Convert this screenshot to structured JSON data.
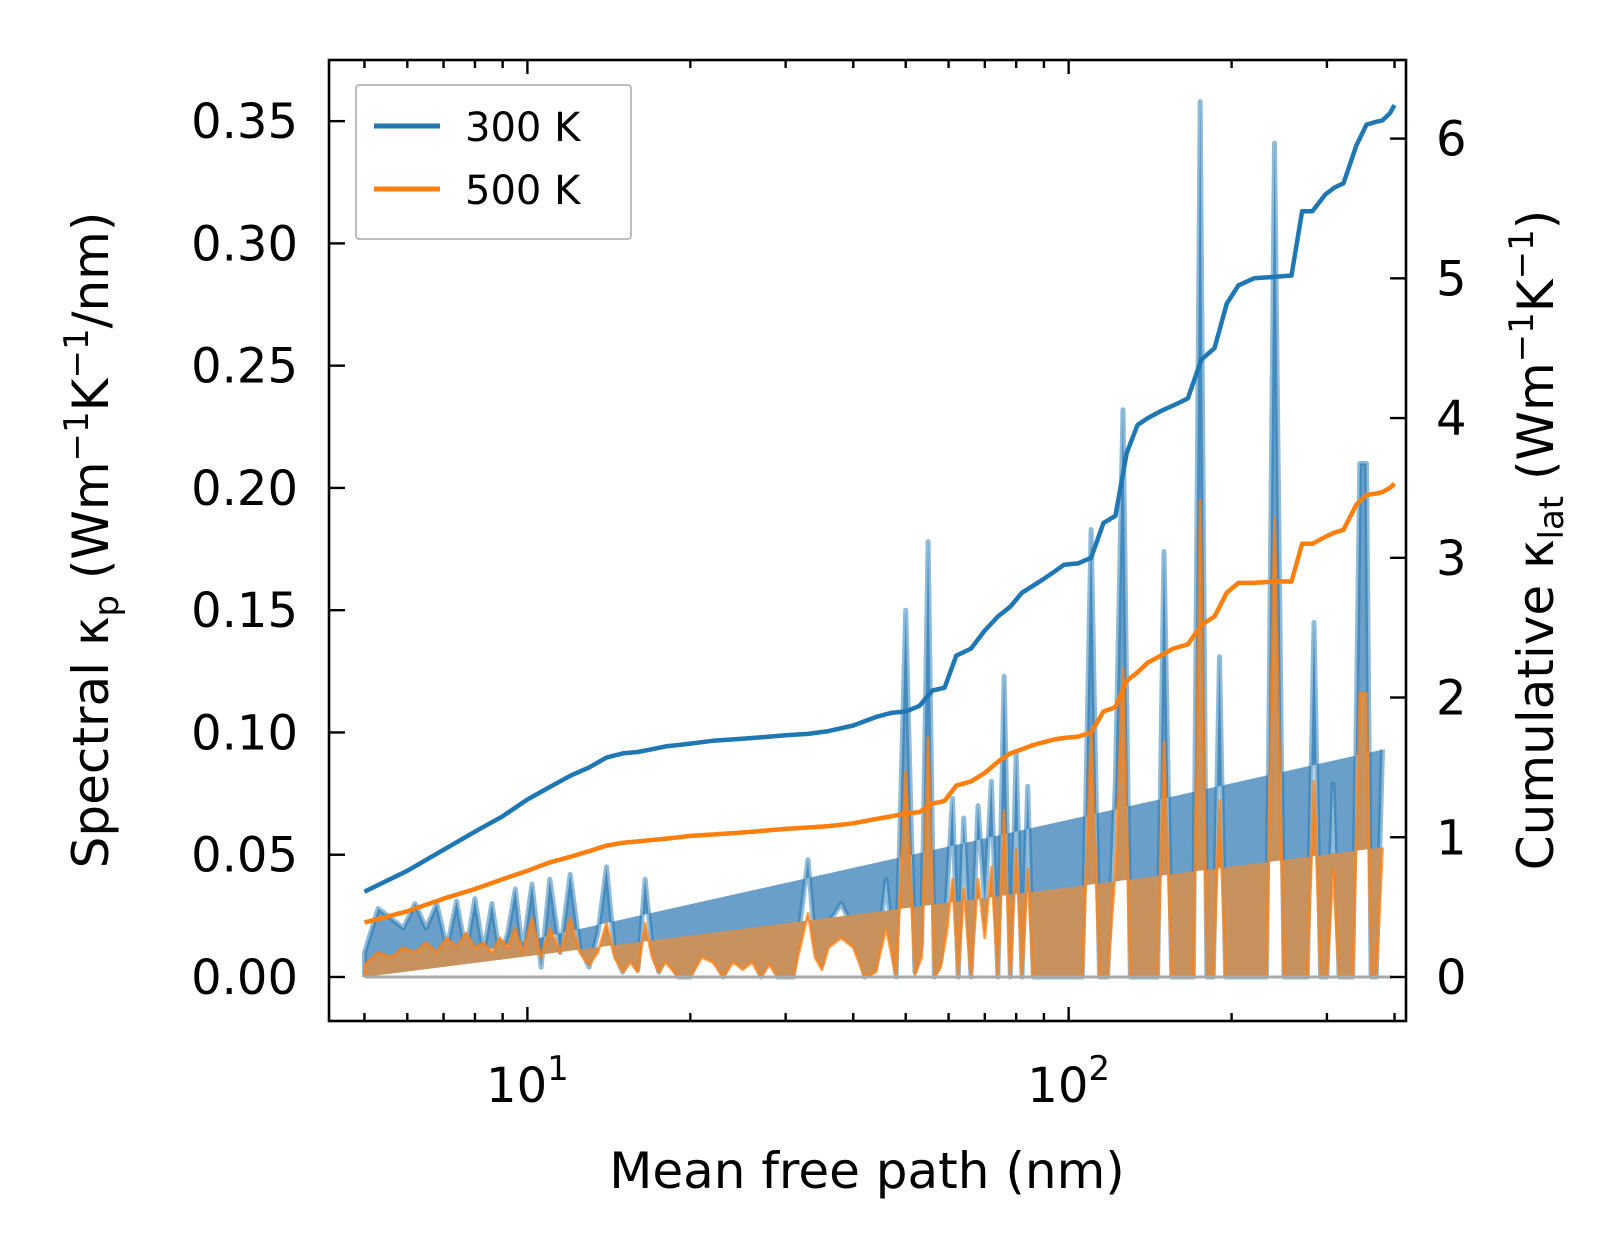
{
  "chart_data": {
    "type": "line",
    "xscale": "log",
    "xlim": [
      4.3,
      420
    ],
    "ylim_left": [
      -0.018,
      0.375
    ],
    "ylim_right": [
      -0.315,
      6.5625
    ],
    "xlabel": "Mean free path (nm)",
    "ylabel_left": {
      "prefix": "Spectral κ",
      "sub": "p",
      "open": " (Wm",
      "sup1": "−1",
      "mid": "K",
      "sup2": "−1",
      "close": "/nm)"
    },
    "ylabel_right": {
      "prefix": "Cumulative κ",
      "sub": "lat",
      "open": " (Wm",
      "sup1": "−1",
      "mid": "K",
      "sup2": "−1",
      "close": ")"
    },
    "x_ticks": [
      {
        "value": 10,
        "base": "10",
        "exp": "1"
      },
      {
        "value": 100,
        "base": "10",
        "exp": "2"
      }
    ],
    "y_ticks_left": [
      "0.00",
      "0.05",
      "0.10",
      "0.15",
      "0.20",
      "0.25",
      "0.30",
      "0.35"
    ],
    "y_ticks_right": [
      "0",
      "1",
      "2",
      "3",
      "4",
      "5",
      "6"
    ],
    "legend": {
      "location": "upper-left",
      "entries": [
        "300 K",
        "500 K"
      ]
    },
    "colors": {
      "s300": "#1f77b4",
      "s500": "#ff7f0e",
      "fill300": "#6a9fc9",
      "fill500": "#c8925e",
      "baseline": "#a9a9a9"
    },
    "spectral": {
      "x": [
        5.0,
        5.3,
        5.6,
        5.9,
        6.2,
        6.5,
        6.8,
        7.1,
        7.4,
        7.7,
        8.0,
        8.3,
        8.6,
        8.9,
        9.2,
        9.5,
        9.8,
        10.2,
        10.6,
        11.0,
        11.5,
        12.0,
        12.5,
        13.0,
        13.5,
        14.0,
        14.5,
        15.0,
        15.5,
        16.0,
        16.5,
        17.0,
        17.5,
        18.0,
        18.5,
        19.0,
        20.0,
        21.0,
        22.0,
        23.0,
        24.0,
        25.0,
        26.0,
        27.0,
        28.0,
        29.0,
        30.0,
        31.0,
        33.0,
        34.0,
        35.0,
        36.0,
        38.0,
        40.0,
        42.0,
        44.0,
        46.0,
        48.0,
        50.0,
        52.0,
        53.5,
        55.0,
        56.5,
        58.0,
        59.5,
        61.0,
        62.5,
        64.0,
        66.0,
        68.0,
        70.0,
        72.0,
        74.0,
        76.0,
        78.0,
        80.0,
        82.0,
        84.0,
        86.0,
        88.0,
        90.0,
        92.0,
        94.0,
        96.0,
        99.0,
        102.0,
        106.0,
        110.0,
        114.0,
        118.0,
        122.0,
        126.0,
        130.0,
        134.0,
        138.0,
        142.0,
        146.0,
        150.0,
        155.0,
        160.0,
        165.0,
        170.0,
        175.0,
        180.0,
        185.0,
        190.0,
        195.0,
        200.0,
        205.0,
        210.0,
        215.0,
        220.0,
        226.0,
        232.0,
        240.0,
        250.0,
        260.0,
        268.0,
        276.0,
        284.0,
        292.0,
        300.0,
        308.0,
        316.0,
        325.0,
        335.0,
        345.0,
        355.0,
        362.0,
        370.0,
        380.0,
        390.0,
        397.0
      ],
      "y300": [
        0.01,
        0.028,
        0.024,
        0.02,
        0.03,
        0.02,
        0.03,
        0.012,
        0.031,
        0.01,
        0.032,
        0.01,
        0.03,
        0.008,
        0.018,
        0.036,
        0.01,
        0.038,
        0.004,
        0.04,
        0.01,
        0.042,
        0.012,
        0.004,
        0.018,
        0.045,
        0.01,
        0.002,
        0.008,
        0.003,
        0.04,
        0.012,
        0.002,
        0.01,
        0.005,
        0.0,
        0.0,
        0.012,
        0.01,
        0.0,
        0.01,
        0.005,
        0.011,
        0.0,
        0.009,
        0.0,
        0.0,
        0.0,
        0.048,
        0.013,
        0.005,
        0.022,
        0.03,
        0.02,
        0.0,
        0.003,
        0.04,
        0.0,
        0.15,
        0.002,
        0.013,
        0.178,
        0.0,
        0.006,
        0.032,
        0.073,
        0.0,
        0.065,
        0.0,
        0.07,
        0.03,
        0.08,
        0.0,
        0.123,
        0.0,
        0.092,
        0.0,
        0.078,
        0.0,
        0.0,
        0.0,
        0.0,
        0.0,
        0.0,
        0.0,
        0.0,
        0.0,
        0.183,
        0.0,
        0.0,
        0.08,
        0.232,
        0.0,
        0.0,
        0.0,
        0.0,
        0.0,
        0.174,
        0.0,
        0.0,
        0.0,
        0.0,
        0.358,
        0.0,
        0.0,
        0.131,
        0.0,
        0.0,
        0.0,
        0.0,
        0.0,
        0.0,
        0.0,
        0.0,
        0.341,
        0.0,
        0.0,
        0.0,
        0.0,
        0.145,
        0.0,
        0.0,
        0.079,
        0.0,
        0.0,
        0.0,
        0.21,
        0.21,
        0.0,
        0.0,
        0.093
      ],
      "y500": [
        0.005,
        0.01,
        0.008,
        0.012,
        0.01,
        0.014,
        0.01,
        0.016,
        0.012,
        0.018,
        0.012,
        0.014,
        0.01,
        0.016,
        0.012,
        0.02,
        0.01,
        0.024,
        0.008,
        0.02,
        0.01,
        0.024,
        0.01,
        0.005,
        0.01,
        0.022,
        0.008,
        0.002,
        0.006,
        0.002,
        0.022,
        0.008,
        0.002,
        0.006,
        0.003,
        0.0,
        0.0,
        0.008,
        0.006,
        0.0,
        0.006,
        0.003,
        0.006,
        0.0,
        0.005,
        0.0,
        0.0,
        0.0,
        0.026,
        0.008,
        0.003,
        0.012,
        0.016,
        0.012,
        0.0,
        0.002,
        0.02,
        0.0,
        0.084,
        0.001,
        0.008,
        0.098,
        0.0,
        0.004,
        0.018,
        0.04,
        0.0,
        0.036,
        0.0,
        0.04,
        0.016,
        0.045,
        0.0,
        0.068,
        0.0,
        0.052,
        0.0,
        0.044,
        0.0,
        0.0,
        0.0,
        0.0,
        0.0,
        0.0,
        0.0,
        0.0,
        0.0,
        0.1,
        0.0,
        0.0,
        0.044,
        0.126,
        0.0,
        0.0,
        0.0,
        0.0,
        0.0,
        0.096,
        0.0,
        0.0,
        0.0,
        0.0,
        0.195,
        0.0,
        0.0,
        0.072,
        0.0,
        0.0,
        0.0,
        0.0,
        0.0,
        0.0,
        0.0,
        0.0,
        0.188,
        0.0,
        0.0,
        0.0,
        0.0,
        0.08,
        0.0,
        0.0,
        0.044,
        0.0,
        0.0,
        0.0,
        0.116,
        0.116,
        0.0,
        0.0,
        0.053
      ]
    },
    "cumulative": {
      "x300": [
        5.0,
        6.0,
        7.0,
        8.0,
        9.0,
        10.0,
        11.0,
        12.0,
        13.0,
        14.0,
        15.0,
        16.0,
        17.0,
        18.0,
        19.0,
        20.0,
        21.0,
        22.0,
        24.0,
        26.0,
        28.0,
        30.0,
        33.0,
        36.0,
        40.0,
        44.0,
        47.0,
        50.0,
        53.0,
        56.0,
        59.0,
        62.0,
        66.0,
        70.0,
        74.0,
        78.0,
        82.0,
        86.0,
        90.0,
        94.0,
        98.0,
        104.0,
        110.0,
        116.0,
        122.0,
        128.0,
        134.0,
        140.0,
        148.0,
        156.0,
        166.0,
        176.0,
        186.0,
        196.0,
        206.0,
        220.0,
        240.0,
        258.0,
        270.0,
        282.0,
        298.0,
        310.0,
        322.0,
        340.0,
        355.0,
        370.0,
        380.0,
        392.0,
        400.0
      ],
      "c300": [
        0.61,
        0.76,
        0.91,
        1.04,
        1.15,
        1.27,
        1.36,
        1.44,
        1.5,
        1.57,
        1.6,
        1.61,
        1.63,
        1.65,
        1.66,
        1.67,
        1.68,
        1.69,
        1.7,
        1.71,
        1.72,
        1.73,
        1.74,
        1.76,
        1.8,
        1.86,
        1.89,
        1.9,
        1.94,
        2.05,
        2.07,
        2.3,
        2.35,
        2.48,
        2.58,
        2.65,
        2.75,
        2.8,
        2.85,
        2.9,
        2.95,
        2.96,
        3.0,
        3.25,
        3.3,
        3.75,
        3.95,
        4.0,
        4.05,
        4.09,
        4.14,
        4.42,
        4.5,
        4.82,
        4.95,
        5.0,
        5.01,
        5.02,
        5.48,
        5.48,
        5.6,
        5.65,
        5.68,
        5.95,
        6.1,
        6.12,
        6.13,
        6.18,
        6.24
      ],
      "x500": [
        5.0,
        6.0,
        7.0,
        8.0,
        9.0,
        10.0,
        11.0,
        12.0,
        13.0,
        14.0,
        15.0,
        16.0,
        17.0,
        18.0,
        19.0,
        20.0,
        22.0,
        24.0,
        26.0,
        28.0,
        30.0,
        33.0,
        36.0,
        40.0,
        44.0,
        47.0,
        50.0,
        53.0,
        56.0,
        59.0,
        62.0,
        66.0,
        70.0,
        74.0,
        78.0,
        82.0,
        86.0,
        90.0,
        94.0,
        98.0,
        104.0,
        110.0,
        116.0,
        122.0,
        128.0,
        134.0,
        140.0,
        148.0,
        156.0,
        166.0,
        176.0,
        186.0,
        196.0,
        206.0,
        220.0,
        240.0,
        258.0,
        270.0,
        282.0,
        298.0,
        310.0,
        322.0,
        340.0,
        355.0,
        370.0,
        380.0,
        392.0,
        400.0
      ],
      "c500": [
        0.39,
        0.47,
        0.56,
        0.63,
        0.7,
        0.76,
        0.82,
        0.86,
        0.9,
        0.94,
        0.96,
        0.97,
        0.98,
        0.99,
        1.0,
        1.01,
        1.02,
        1.03,
        1.04,
        1.05,
        1.06,
        1.07,
        1.08,
        1.1,
        1.13,
        1.15,
        1.17,
        1.18,
        1.24,
        1.26,
        1.37,
        1.4,
        1.46,
        1.54,
        1.6,
        1.63,
        1.66,
        1.68,
        1.7,
        1.71,
        1.72,
        1.75,
        1.9,
        1.93,
        2.12,
        2.18,
        2.25,
        2.3,
        2.35,
        2.38,
        2.52,
        2.58,
        2.75,
        2.82,
        2.82,
        2.83,
        2.83,
        3.1,
        3.1,
        3.15,
        3.18,
        3.2,
        3.38,
        3.45,
        3.46,
        3.47,
        3.5,
        3.53
      ]
    }
  }
}
